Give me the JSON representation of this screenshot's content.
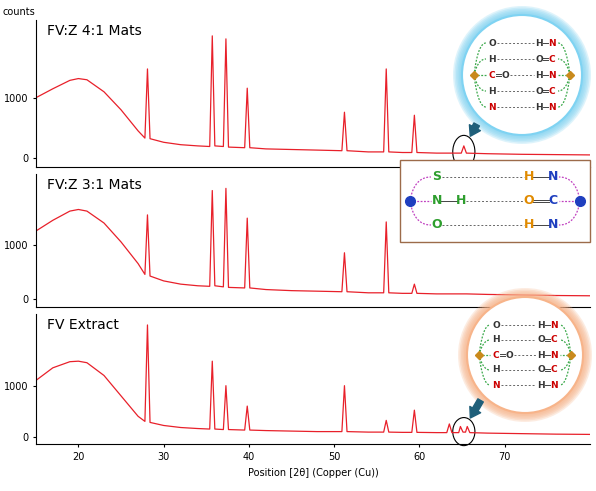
{
  "chart_data": [
    {
      "type": "line",
      "title": "FV:Z 4:1 Mats",
      "ylabel": "counts",
      "color": "#e8202a",
      "x": [
        15,
        17,
        19,
        20,
        21,
        23,
        25,
        27,
        27.8,
        28.1,
        28.4,
        30,
        32,
        34,
        35.4,
        35.7,
        36,
        37,
        37.3,
        37.6,
        39.5,
        39.8,
        40.1,
        42,
        45,
        48,
        50.9,
        51.2,
        51.5,
        54,
        55.8,
        56.1,
        56.4,
        58,
        59.1,
        59.4,
        59.7,
        62,
        64.9,
        65.2,
        65.5,
        68,
        72,
        76,
        80
      ],
      "values": [
        1000,
        1150,
        1290,
        1320,
        1300,
        1100,
        800,
        450,
        330,
        1480,
        320,
        260,
        220,
        200,
        190,
        2030,
        200,
        190,
        1980,
        180,
        170,
        1160,
        170,
        150,
        140,
        130,
        120,
        760,
        120,
        100,
        100,
        1480,
        100,
        90,
        90,
        710,
        90,
        80,
        80,
        200,
        80,
        70,
        60,
        55,
        50
      ],
      "xlim": [
        15,
        80
      ],
      "ylim": [
        -150,
        2300
      ],
      "yticks": [
        0,
        1000
      ],
      "tick_labels": "y",
      "annotations": [
        {
          "rows": [
            {
              "left": [
                "O"
              ],
              "right": [
                "H",
                "N"
              ]
            },
            {
              "left": [
                "H"
              ],
              "right": [
                "O",
                "C"
              ]
            },
            {
              "left": [
                "C",
                "O"
              ],
              "right": [
                "H",
                "N"
              ]
            },
            {
              "left": [
                "H"
              ],
              "right": [
                "O",
                "C"
              ]
            },
            {
              "left": [
                "N"
              ],
              "right": [
                "H",
                "N"
              ]
            }
          ]
        }
      ]
    },
    {
      "type": "line",
      "title": "FV:Z 3:1 Mats",
      "color": "#e8202a",
      "x": [
        15,
        17,
        19,
        20,
        21,
        23,
        25,
        27,
        27.8,
        28.1,
        28.4,
        30,
        32,
        34,
        35.4,
        35.7,
        36,
        37,
        37.3,
        37.6,
        39.5,
        39.8,
        40.1,
        42,
        45,
        48,
        50.9,
        51.2,
        51.5,
        54,
        55.8,
        56.1,
        56.4,
        58,
        59.1,
        59.4,
        59.7,
        62,
        64.9,
        65.2,
        65.5,
        68,
        72,
        76,
        80
      ],
      "values": [
        1250,
        1450,
        1620,
        1650,
        1620,
        1400,
        1050,
        650,
        450,
        1550,
        420,
        330,
        270,
        240,
        230,
        2000,
        240,
        220,
        2040,
        210,
        200,
        1490,
        200,
        170,
        150,
        140,
        130,
        850,
        130,
        110,
        110,
        1420,
        110,
        100,
        100,
        270,
        100,
        90,
        90,
        90,
        90,
        80,
        70,
        60,
        55
      ],
      "xlim": [
        15,
        80
      ],
      "ylim": [
        -150,
        2300
      ],
      "yticks": [
        0,
        1000
      ],
      "tick_labels": "y",
      "annotations": [
        {
          "rows": [
            {
              "left": [
                "S"
              ],
              "right": [
                "H",
                "N"
              ]
            },
            {
              "left": [
                "N",
                "H"
              ],
              "right": [
                "O",
                "C"
              ]
            },
            {
              "left": [
                "O"
              ],
              "right": [
                "H",
                "N"
              ]
            }
          ]
        }
      ]
    },
    {
      "type": "line",
      "title": "FV Extract",
      "xlabel": "Position [2θ] (Copper (Cu))",
      "color": "#e8202a",
      "x": [
        15,
        17,
        19,
        20,
        21,
        23,
        25,
        27,
        27.8,
        28.1,
        28.4,
        30,
        32,
        34,
        35.4,
        35.7,
        36,
        37,
        37.3,
        37.6,
        39.5,
        39.8,
        40.1,
        42,
        45,
        48,
        50.9,
        51.2,
        51.5,
        54,
        55.8,
        56.1,
        56.4,
        58,
        59.1,
        59.4,
        59.7,
        62,
        63.2,
        63.5,
        63.8,
        64.6,
        64.8,
        65.1,
        65.4,
        65.6,
        65.9,
        68,
        72,
        76,
        80
      ],
      "values": [
        1100,
        1350,
        1470,
        1480,
        1450,
        1200,
        800,
        400,
        300,
        2190,
        280,
        220,
        180,
        160,
        150,
        1480,
        150,
        140,
        1000,
        140,
        130,
        600,
        130,
        120,
        110,
        100,
        100,
        1000,
        100,
        90,
        90,
        320,
        90,
        85,
        85,
        520,
        85,
        80,
        80,
        250,
        80,
        80,
        200,
        90,
        90,
        200,
        80,
        70,
        60,
        50,
        45
      ],
      "xlim": [
        15,
        80
      ],
      "ylim": [
        -150,
        2400
      ],
      "xticks": [
        20,
        30,
        40,
        50,
        60,
        70
      ],
      "yticks": [
        0,
        1000
      ],
      "annotations": [
        {
          "rows": [
            {
              "left": [
                "O"
              ],
              "right": [
                "H",
                "N"
              ]
            },
            {
              "left": [
                "H"
              ],
              "right": [
                "O",
                "C"
              ]
            },
            {
              "left": [
                "C",
                "O"
              ],
              "right": [
                "H",
                "N"
              ]
            },
            {
              "left": [
                "H"
              ],
              "right": [
                "O",
                "C"
              ]
            },
            {
              "left": [
                "N"
              ],
              "right": [
                "H",
                "N"
              ]
            }
          ]
        }
      ]
    }
  ]
}
